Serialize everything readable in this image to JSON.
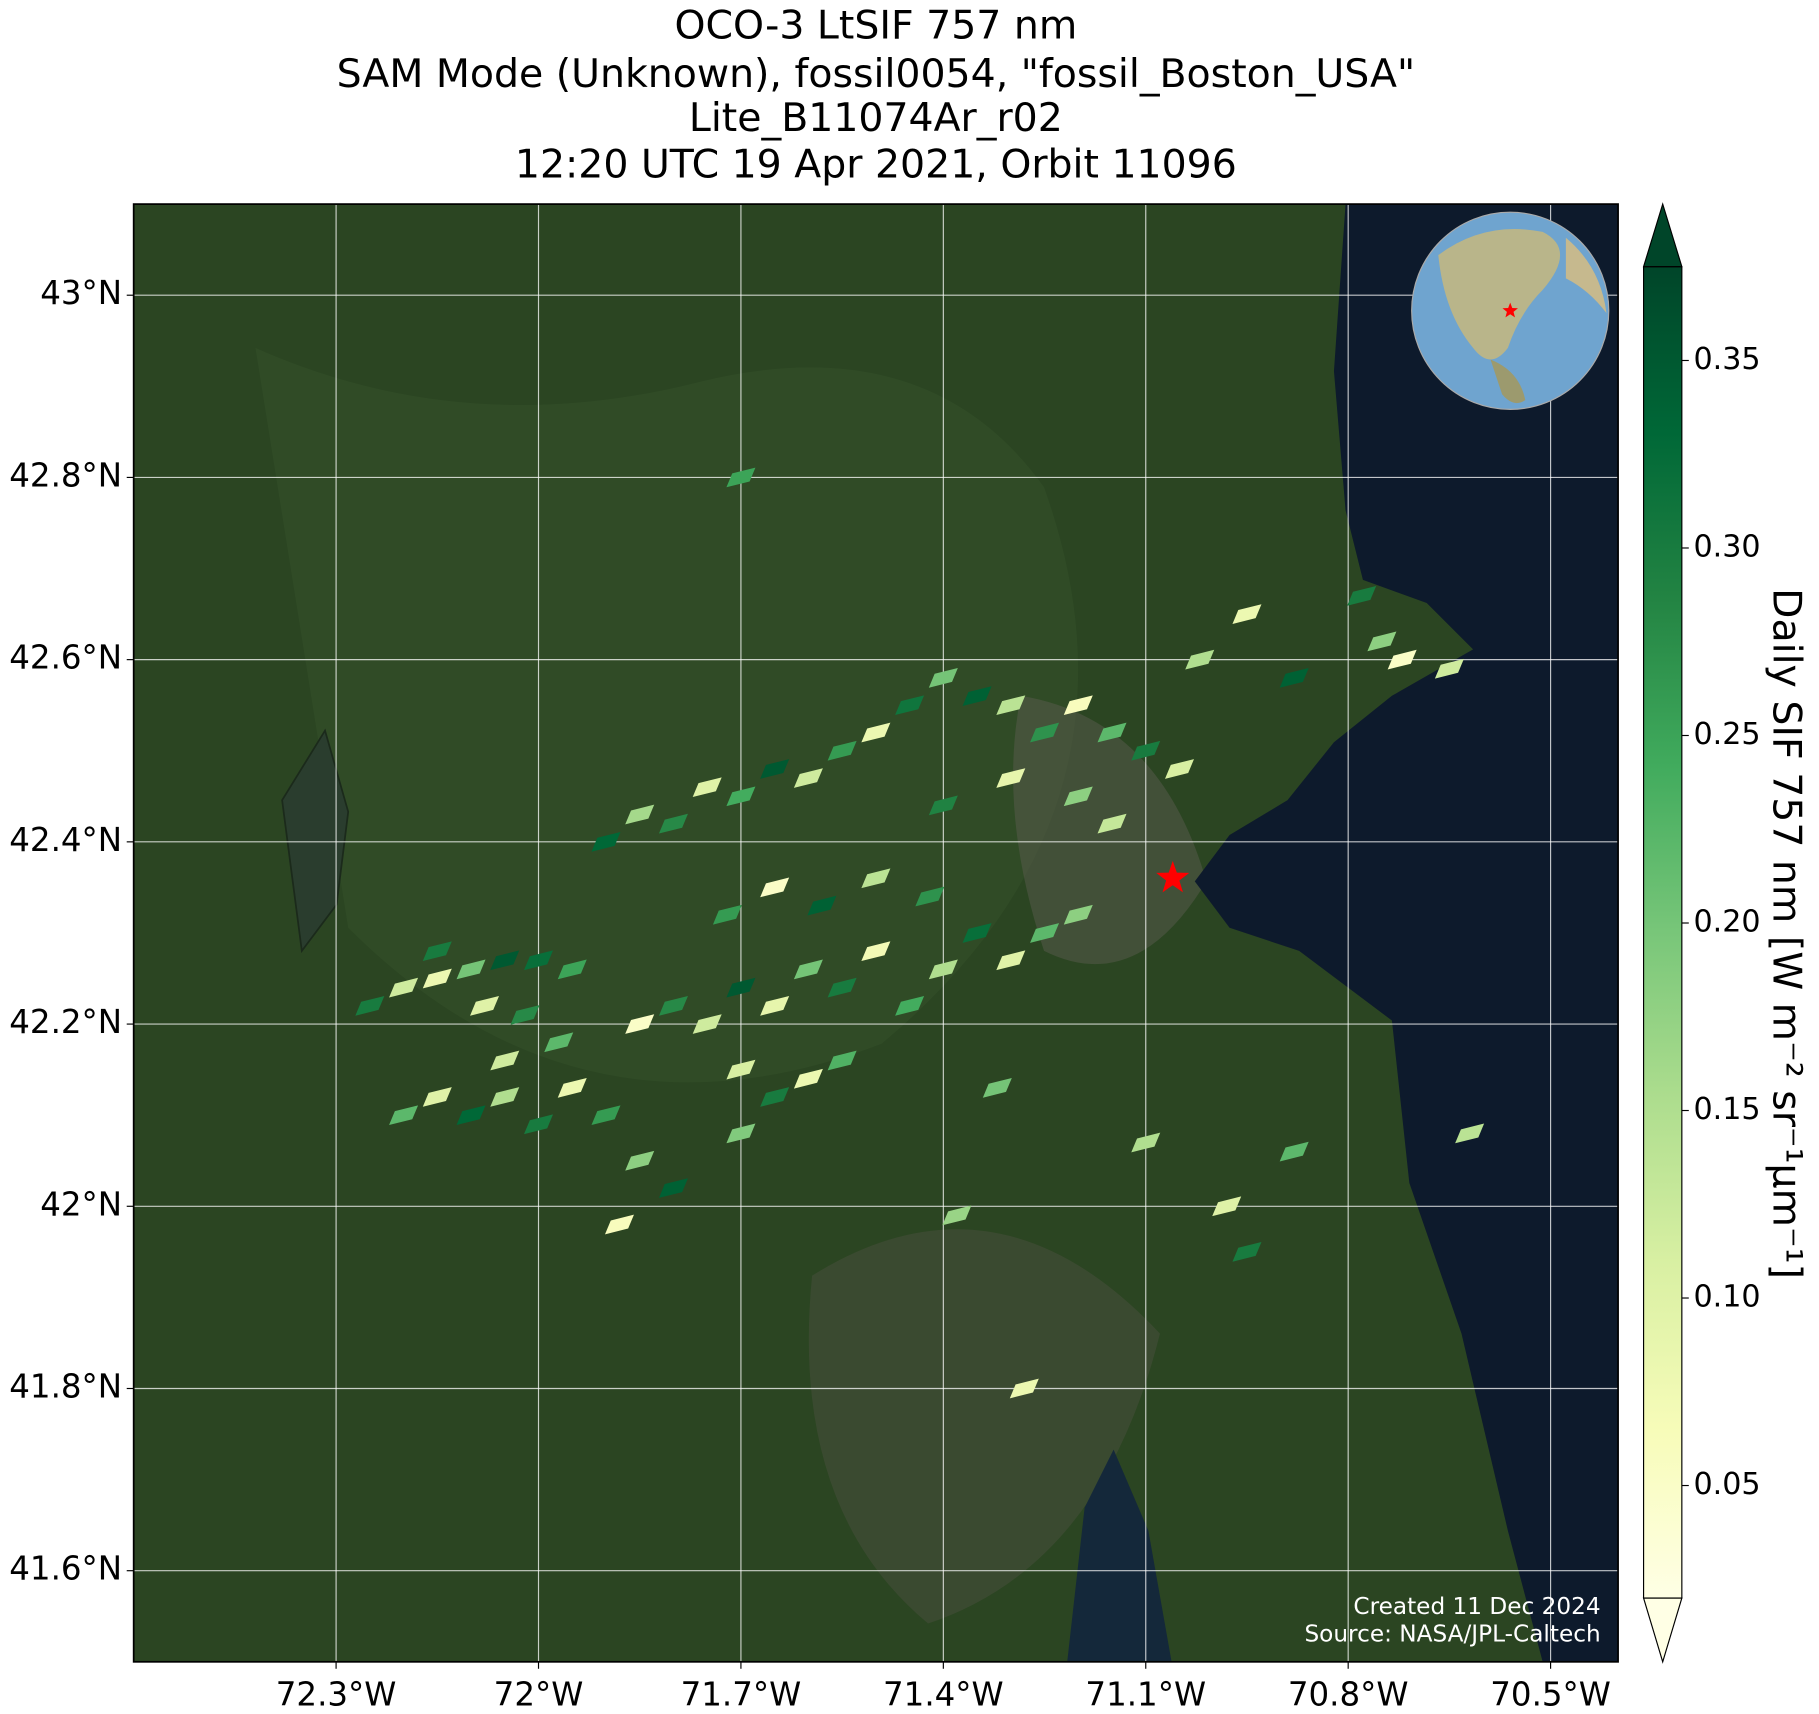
{
  "chart_data": {
    "type": "map",
    "title_lines": [
      "OCO-3 LtSIF 757 nm",
      "SAM Mode (Unknown), fossil0054, \"fossil_Boston_USA\"",
      "Lite_B11074Ar_r02",
      "12:20 UTC 19 Apr 2021, Orbit 11096"
    ],
    "xlim": [
      -72.6,
      -70.4
    ],
    "ylim": [
      41.5,
      43.1
    ],
    "xticks": [
      {
        "value": -72.3,
        "label": "72.3°W"
      },
      {
        "value": -72,
        "label": "72°W"
      },
      {
        "value": -71.7,
        "label": "71.7°W"
      },
      {
        "value": -71.4,
        "label": "71.4°W"
      },
      {
        "value": -71.1,
        "label": "71.1°W"
      },
      {
        "value": -70.8,
        "label": "70.8°W"
      },
      {
        "value": -70.5,
        "label": "70.5°W"
      }
    ],
    "yticks": [
      {
        "value": 41.6,
        "label": "41.6°N"
      },
      {
        "value": 41.8,
        "label": "41.8°N"
      },
      {
        "value": 42,
        "label": "42°N"
      },
      {
        "value": 42.2,
        "label": "42.2°N"
      },
      {
        "value": 42.4,
        "label": "42.4°N"
      },
      {
        "value": 42.6,
        "label": "42.6°N"
      },
      {
        "value": 42.8,
        "label": "42.8°N"
      },
      {
        "value": 43,
        "label": "43°N"
      }
    ],
    "grid": true,
    "colormap": "YlGn",
    "clim": [
      0.02,
      0.375
    ],
    "cticks": [
      0.05,
      {
        "value": 0.1,
        "label": "0.10"
      },
      0.15,
      {
        "value": 0.2,
        "label": "0.20"
      },
      0.25,
      {
        "value": 0.3,
        "label": "0.30"
      },
      0.35
    ],
    "colorbar_label": "Daily SIF 757 nm [W m⁻² sr⁻¹μm⁻¹]",
    "target": {
      "lon": -71.06,
      "lat": 42.36,
      "color": "#ff0000"
    },
    "credits": [
      "Created 11 Dec 2024",
      "Source: NASA/JPL-Caltech"
    ],
    "cells": {
      "lon": [
        -72.25,
        -72.2,
        -72.15,
        -72.1,
        -72.05,
        -72.0,
        -71.95,
        -72.15,
        -72.08,
        -72.02,
        -72.2,
        -72.15,
        -72.1,
        -72.05,
        -72.0,
        -71.95,
        -71.9,
        -71.85,
        -71.8,
        -71.88,
        -72.05,
        -71.97,
        -71.85,
        -71.8,
        -71.75,
        -71.7,
        -71.65,
        -71.6,
        -71.55,
        -71.5,
        -71.45,
        -71.4,
        -71.35,
        -71.3,
        -71.25,
        -71.2,
        -71.72,
        -71.65,
        -71.58,
        -71.5,
        -71.42,
        -71.7,
        -71.65,
        -71.6,
        -71.55,
        -71.7,
        -71.9,
        -71.85,
        -71.8,
        -71.75,
        -71.7,
        -71.65,
        -71.6,
        -71.55,
        -71.5,
        -71.45,
        -71.4,
        -71.35,
        -71.3,
        -71.25,
        -71.2,
        -71.15,
        -71.1,
        -71.05,
        -71.2,
        -71.3,
        -71.15,
        -71.4,
        -71.02,
        -70.95,
        -70.88,
        -70.75,
        -70.72,
        -70.78,
        -70.65,
        -71.7,
        -71.32,
        -71.1,
        -70.98,
        -71.38,
        -70.88,
        -70.62,
        -71.28,
        -70.95
      ],
      "lat": [
        42.22,
        42.24,
        42.25,
        42.26,
        42.27,
        42.27,
        42.26,
        42.28,
        42.22,
        42.21,
        42.1,
        42.12,
        42.1,
        42.12,
        42.09,
        42.13,
        42.1,
        42.05,
        42.02,
        41.98,
        42.16,
        42.18,
        42.2,
        42.22,
        42.2,
        42.24,
        42.22,
        42.26,
        42.24,
        42.28,
        42.22,
        42.26,
        42.3,
        42.27,
        42.3,
        42.32,
        42.32,
        42.35,
        42.33,
        42.36,
        42.34,
        42.15,
        42.12,
        42.14,
        42.16,
        42.08,
        42.4,
        42.43,
        42.42,
        42.46,
        42.45,
        42.48,
        42.47,
        42.5,
        42.52,
        42.55,
        42.58,
        42.56,
        42.55,
        42.52,
        42.55,
        42.52,
        42.5,
        42.48,
        42.45,
        42.47,
        42.42,
        42.44,
        42.6,
        42.65,
        42.58,
        42.62,
        42.6,
        42.67,
        42.59,
        42.8,
        42.13,
        42.07,
        42.0,
        41.99,
        42.06,
        42.08,
        41.8,
        41.95
      ],
      "values": [
        0.3,
        0.12,
        0.08,
        0.2,
        0.35,
        0.32,
        0.25,
        0.3,
        0.1,
        0.28,
        0.22,
        0.1,
        0.33,
        0.15,
        0.3,
        0.08,
        0.26,
        0.18,
        0.34,
        0.06,
        0.12,
        0.22,
        0.05,
        0.28,
        0.12,
        0.35,
        0.09,
        0.2,
        0.3,
        0.07,
        0.24,
        0.15,
        0.32,
        0.1,
        0.22,
        0.18,
        0.26,
        0.05,
        0.34,
        0.14,
        0.27,
        0.11,
        0.3,
        0.08,
        0.23,
        0.19,
        0.33,
        0.16,
        0.28,
        0.1,
        0.24,
        0.35,
        0.12,
        0.26,
        0.08,
        0.31,
        0.2,
        0.34,
        0.14,
        0.27,
        0.06,
        0.22,
        0.3,
        0.11,
        0.18,
        0.09,
        0.13,
        0.29,
        0.15,
        0.08,
        0.34,
        0.18,
        0.05,
        0.3,
        0.12,
        0.25,
        0.2,
        0.15,
        0.1,
        0.17,
        0.22,
        0.14,
        0.08,
        0.3
      ]
    }
  }
}
